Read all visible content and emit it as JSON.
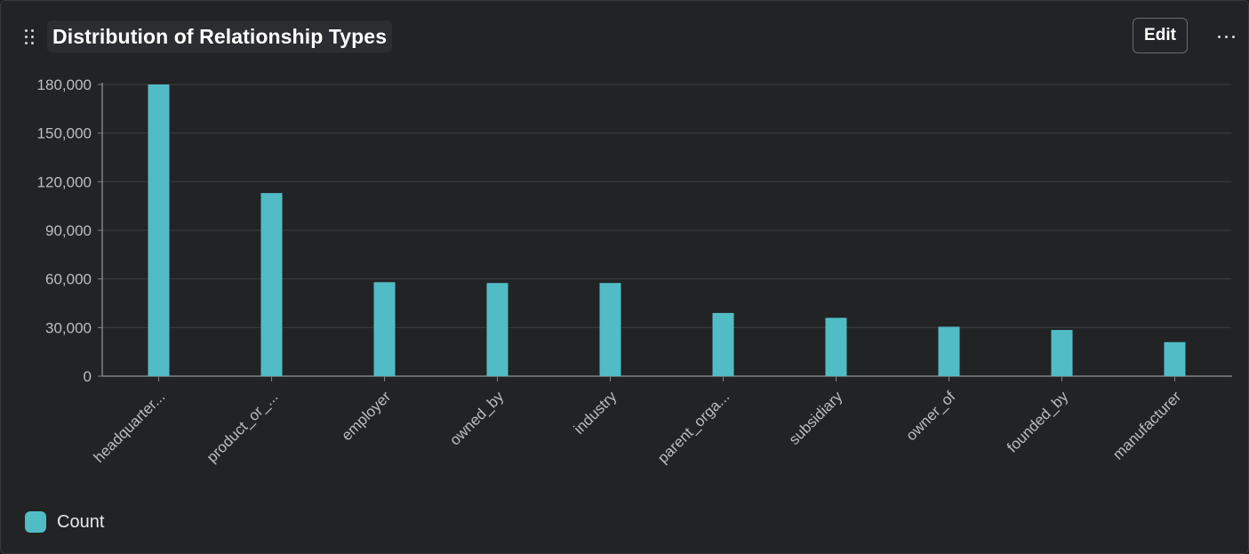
{
  "header": {
    "title": "Distribution of Relationship Types",
    "edit_label": "Edit",
    "drag_icon": "drag-handle-icon",
    "more_icon": "more-horizontal-icon"
  },
  "colors": {
    "bar": "#52bcc6",
    "grid": "#3d3e41",
    "axis": "#808184",
    "tick_text": "#bdbdbd"
  },
  "chart_data": {
    "type": "bar",
    "title": "Distribution of Relationship Types",
    "xlabel": "",
    "ylabel": "",
    "categories": [
      "headquarter...",
      "product_or_...",
      "employer",
      "owned_by",
      "industry",
      "parent_orga...",
      "subsidiary",
      "owner_of",
      "founded_by",
      "manufacturer"
    ],
    "series": [
      {
        "name": "Count",
        "values": [
          180000,
          113000,
          58000,
          57500,
          57500,
          39000,
          36000,
          30500,
          28500,
          21000
        ]
      }
    ],
    "ylim": [
      0,
      180000
    ],
    "yticks": [
      0,
      30000,
      60000,
      90000,
      120000,
      150000,
      180000
    ],
    "ytick_labels": [
      "0",
      "30,000",
      "60,000",
      "90,000",
      "120,000",
      "150,000",
      "180,000"
    ],
    "grid": true,
    "legend_position": "bottom-left"
  },
  "legend": {
    "items": [
      {
        "label": "Count"
      }
    ]
  }
}
